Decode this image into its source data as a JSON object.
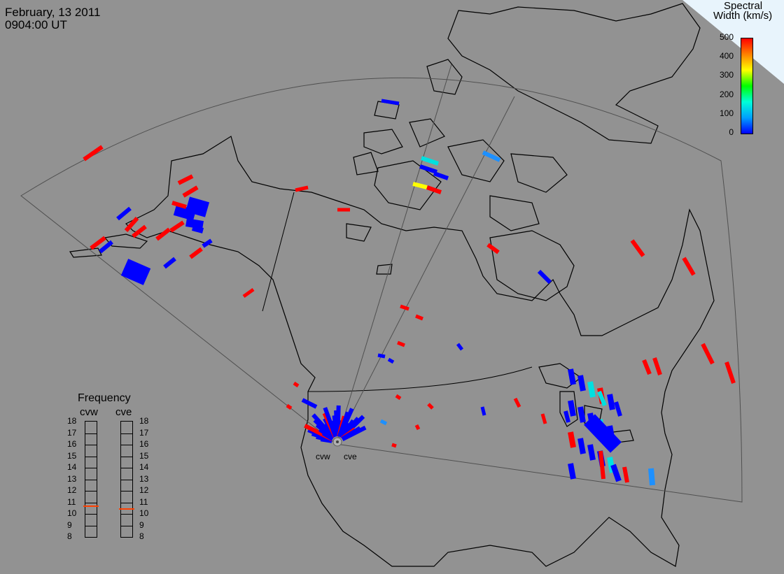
{
  "header": {
    "date": "February, 13 2011",
    "time": "0904:00 UT"
  },
  "colorbar": {
    "title_line1": "Spectral",
    "title_line2": "Width (km/s)",
    "ticks": [
      "500",
      "400",
      "300",
      "200",
      "100",
      "0"
    ],
    "min": 0,
    "max": 500,
    "colors": [
      "#0000ff",
      "#00a0ff",
      "#00ffd8",
      "#00ff00",
      "#ffff00",
      "#ff8000",
      "#ff0000"
    ]
  },
  "frequency_panel": {
    "title": "Frequency",
    "radars": [
      {
        "name": "cvw",
        "frequency_mhz": 10.7
      },
      {
        "name": "cve",
        "frequency_mhz": 10.5
      }
    ],
    "scale_labels": [
      "18",
      "17",
      "16",
      "15",
      "14",
      "13",
      "12",
      "11",
      "10",
      "9",
      "8"
    ],
    "scale_min": 8,
    "scale_max": 18
  },
  "radar_labels": {
    "cvw": "cvw",
    "cve": "cve"
  },
  "colors": {
    "background": "#929292",
    "coastline": "#000000",
    "fov_outline": "#505050",
    "low_width": "#0000ff",
    "high_width": "#ff0000",
    "marker_line": "#ff4000",
    "corner_fill": "#e8f4fc"
  }
}
